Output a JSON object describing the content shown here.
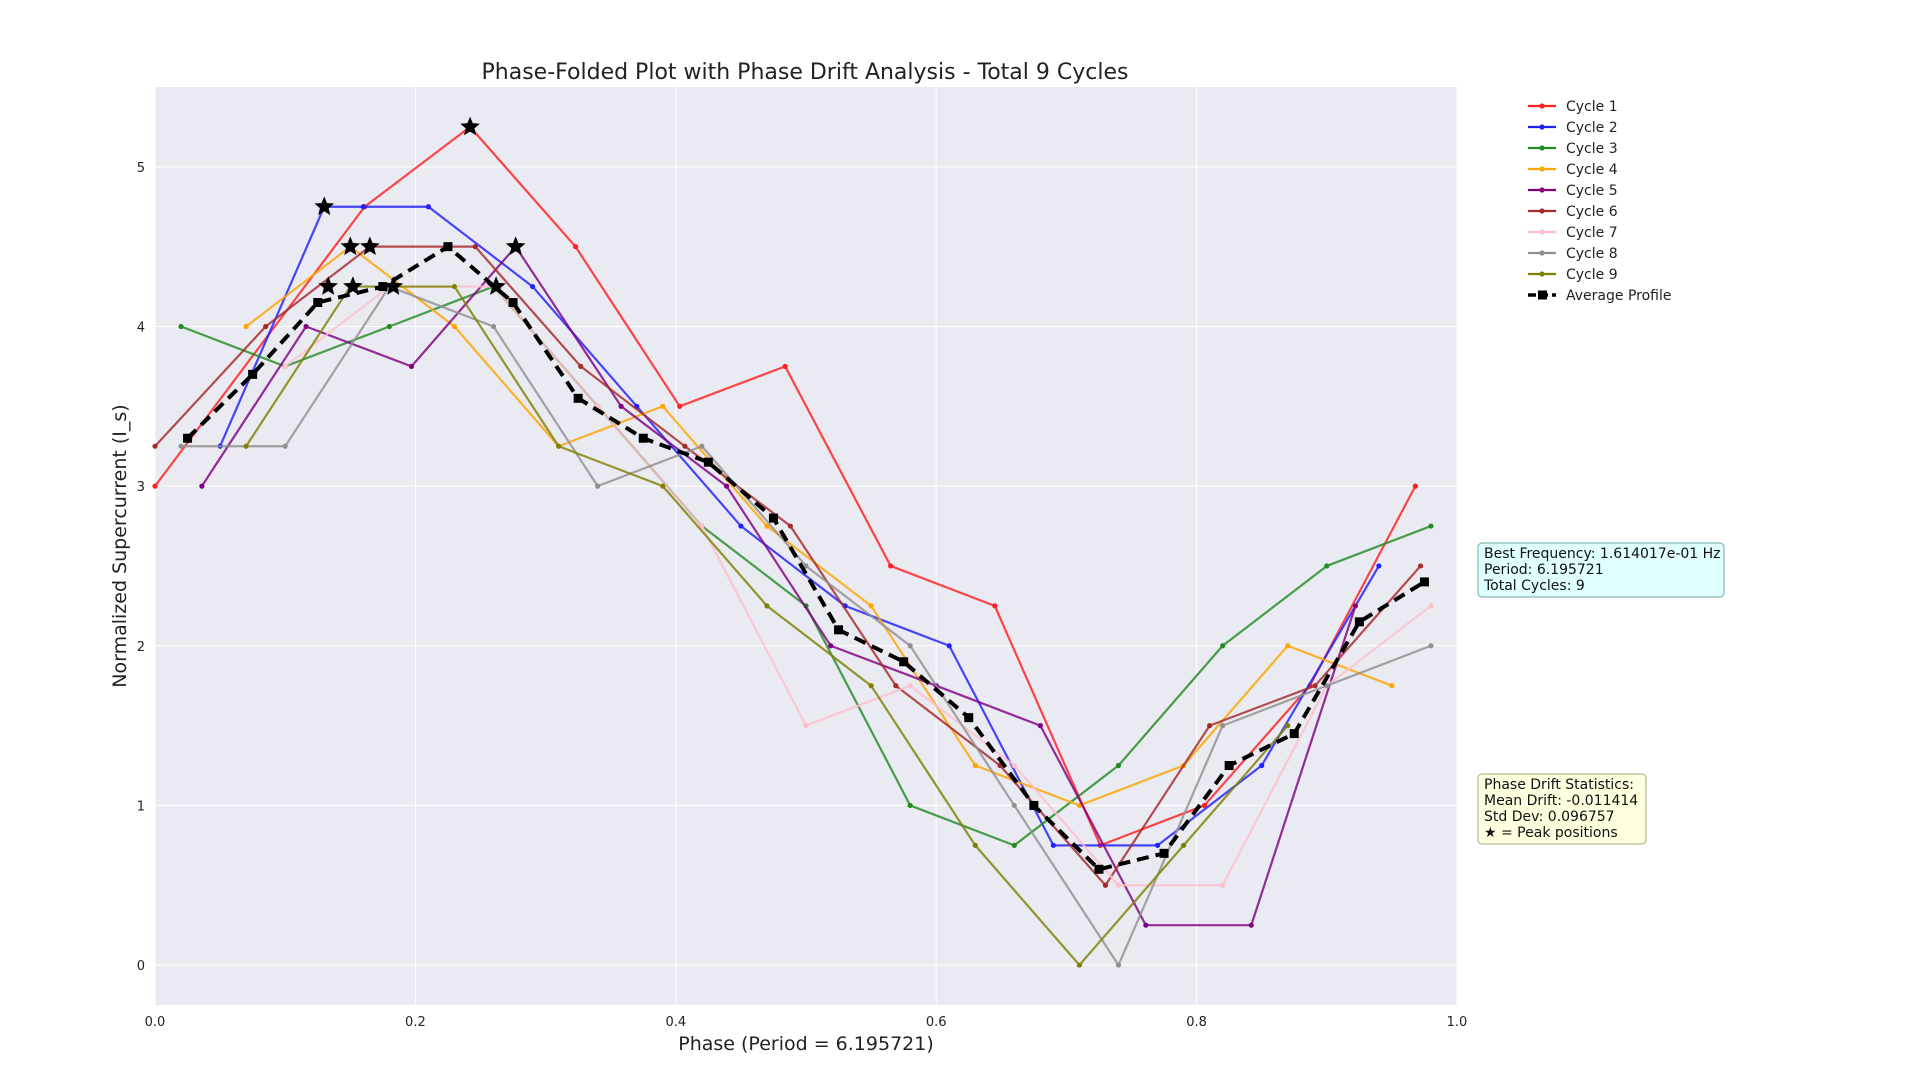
{
  "chart_data": {
    "type": "line",
    "title": "Phase-Folded Plot with Phase Drift Analysis - Total 9 Cycles",
    "xlabel": "Phase (Period = 6.195721)",
    "ylabel": "Normalized Supercurrent (I_s)",
    "xlim": [
      0.0,
      1.0
    ],
    "ylim": [
      -0.25,
      5.5
    ],
    "x_ticks": [
      "0.0",
      "0.2",
      "0.4",
      "0.6",
      "0.8",
      "1.0"
    ],
    "y_ticks": [
      "0",
      "1",
      "2",
      "3",
      "4",
      "5"
    ],
    "grid": true,
    "legend_position": "right",
    "series": [
      {
        "name": "Cycle 1",
        "color": "#ff2020",
        "x": [
          0.0,
          0.161,
          0.242,
          0.323,
          0.403,
          0.484,
          0.565,
          0.645,
          0.726,
          0.806,
          0.887,
          0.968
        ],
        "y": [
          3.0,
          4.75,
          5.25,
          4.5,
          3.5,
          3.75,
          2.5,
          2.25,
          0.75,
          1.0,
          1.75,
          3.0
        ]
      },
      {
        "name": "Cycle 2",
        "color": "#2020ff",
        "x": [
          0.05,
          0.13,
          0.16,
          0.21,
          0.29,
          0.37,
          0.45,
          0.53,
          0.61,
          0.69,
          0.77,
          0.85,
          0.94
        ],
        "y": [
          3.25,
          4.75,
          4.75,
          4.75,
          4.25,
          3.5,
          2.75,
          2.25,
          2.0,
          0.75,
          0.75,
          1.25,
          2.5
        ]
      },
      {
        "name": "Cycle 3",
        "color": "#228b22",
        "x": [
          0.02,
          0.1,
          0.18,
          0.26,
          0.34,
          0.42,
          0.5,
          0.58,
          0.66,
          0.74,
          0.82,
          0.9,
          0.98
        ],
        "y": [
          4.0,
          3.75,
          4.0,
          4.25,
          3.5,
          2.75,
          2.25,
          1.0,
          0.75,
          1.25,
          2.0,
          2.5,
          2.75
        ]
      },
      {
        "name": "Cycle 4",
        "color": "#ffa500",
        "x": [
          0.07,
          0.15,
          0.23,
          0.31,
          0.39,
          0.47,
          0.55,
          0.63,
          0.71,
          0.79,
          0.87,
          0.95
        ],
        "y": [
          4.0,
          4.5,
          4.0,
          3.25,
          3.5,
          2.75,
          2.25,
          1.25,
          1.0,
          1.25,
          2.0,
          1.75
        ]
      },
      {
        "name": "Cycle 5",
        "color": "#800080",
        "x": [
          0.036,
          0.116,
          0.197,
          0.277,
          0.358,
          0.439,
          0.519,
          0.6,
          0.68,
          0.761,
          0.842,
          0.922
        ],
        "y": [
          3.0,
          4.0,
          3.75,
          4.5,
          3.5,
          3.0,
          2.0,
          1.75,
          1.5,
          0.25,
          0.25,
          2.25
        ]
      },
      {
        "name": "Cycle 6",
        "color": "#a52a2a",
        "x": [
          0.0,
          0.085,
          0.165,
          0.246,
          0.327,
          0.407,
          0.488,
          0.569,
          0.649,
          0.73,
          0.81,
          0.891,
          0.972
        ],
        "y": [
          3.25,
          4.0,
          4.5,
          4.5,
          3.75,
          3.25,
          2.75,
          1.75,
          1.25,
          0.5,
          1.5,
          1.75,
          2.5
        ]
      },
      {
        "name": "Cycle 7",
        "color": "#ffc0cb",
        "x": [
          0.1,
          0.18,
          0.26,
          0.34,
          0.42,
          0.5,
          0.58,
          0.66,
          0.74,
          0.82,
          0.9,
          0.98
        ],
        "y": [
          3.75,
          4.25,
          4.25,
          3.5,
          2.75,
          1.5,
          1.75,
          1.25,
          0.5,
          0.5,
          1.75,
          2.25
        ]
      },
      {
        "name": "Cycle 8",
        "color": "#909090",
        "x": [
          0.02,
          0.1,
          0.18,
          0.26,
          0.34,
          0.42,
          0.5,
          0.58,
          0.66,
          0.74,
          0.82,
          0.9,
          0.98
        ],
        "y": [
          3.25,
          3.25,
          4.25,
          4.0,
          3.0,
          3.25,
          2.5,
          2.0,
          1.0,
          0.0,
          1.5,
          1.75,
          2.0
        ]
      },
      {
        "name": "Cycle 9",
        "color": "#808000",
        "x": [
          0.07,
          0.15,
          0.23,
          0.31,
          0.39,
          0.47,
          0.55,
          0.63,
          0.71,
          0.79,
          0.87
        ],
        "y": [
          3.25,
          4.25,
          4.25,
          3.25,
          3.0,
          2.25,
          1.75,
          0.75,
          0.0,
          0.75,
          1.5
        ]
      },
      {
        "name": "Average Profile",
        "color": "#000000",
        "dashed": true,
        "x": [
          0.025,
          0.075,
          0.125,
          0.175,
          0.225,
          0.275,
          0.325,
          0.375,
          0.425,
          0.475,
          0.525,
          0.575,
          0.625,
          0.675,
          0.725,
          0.775,
          0.825,
          0.875,
          0.925,
          0.975
        ],
        "y": [
          3.3,
          3.7,
          4.15,
          4.25,
          4.5,
          4.15,
          3.55,
          3.3,
          3.15,
          2.8,
          2.1,
          1.9,
          1.55,
          1.0,
          0.6,
          0.7,
          1.25,
          1.45,
          2.15,
          2.4
        ]
      }
    ],
    "peaks": [
      {
        "x": 0.242,
        "y": 5.25
      },
      {
        "x": 0.13,
        "y": 4.75
      },
      {
        "x": 0.15,
        "y": 4.5
      },
      {
        "x": 0.165,
        "y": 4.5
      },
      {
        "x": 0.277,
        "y": 4.5
      },
      {
        "x": 0.133,
        "y": 4.25
      },
      {
        "x": 0.152,
        "y": 4.25
      },
      {
        "x": 0.183,
        "y": 4.25
      },
      {
        "x": 0.262,
        "y": 4.25
      }
    ],
    "info_box": [
      "Best Frequency: 1.614017e-01 Hz",
      "Period: 6.195721",
      "Total Cycles: 9"
    ],
    "drift_box": [
      "Phase Drift Statistics:",
      "Mean Drift: -0.011414",
      "Std Dev: 0.096757",
      "★ = Peak positions"
    ]
  }
}
